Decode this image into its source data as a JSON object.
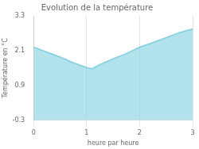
{
  "chart_data": {
    "type": "line",
    "title": "Evolution de la température",
    "xlabel": "heure par heure",
    "ylabel": "Température en °C",
    "x": [
      0,
      0.25,
      0.5,
      0.75,
      1.0,
      1.1,
      1.25,
      1.5,
      1.75,
      2.0,
      2.25,
      2.5,
      2.75,
      3.0
    ],
    "values": [
      2.22,
      2.05,
      1.88,
      1.68,
      1.52,
      1.48,
      1.62,
      1.82,
      2.0,
      2.22,
      2.38,
      2.55,
      2.72,
      2.85
    ],
    "color": "#7ecfdf",
    "xlim": [
      0,
      3
    ],
    "xticks": [
      0,
      1,
      2,
      3
    ],
    "ylim": [
      -0.3,
      3.3
    ],
    "yticks": [
      -0.3,
      0.9,
      2.1,
      3.3
    ],
    "grid": "x"
  }
}
